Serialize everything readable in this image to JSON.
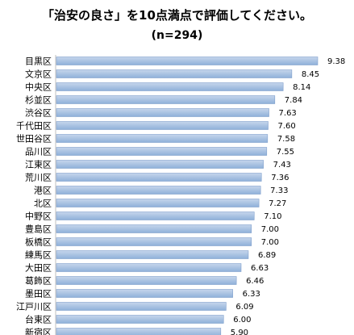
{
  "chart_data": {
    "type": "bar",
    "orientation": "horizontal",
    "title": "「治安の良さ」を10点満点で評価してください。",
    "subtitle": "(n=294)",
    "categories": [
      "目黒区",
      "文京区",
      "中央区",
      "杉並区",
      "渋谷区",
      "千代田区",
      "世田谷区",
      "品川区",
      "江東区",
      "荒川区",
      "港区",
      "北区",
      "中野区",
      "豊島区",
      "板橋区",
      "練馬区",
      "大田区",
      "葛飾区",
      "墨田区",
      "江戸川区",
      "台東区",
      "新宿区"
    ],
    "values": [
      9.38,
      8.45,
      8.14,
      7.84,
      7.63,
      7.6,
      7.58,
      7.55,
      7.43,
      7.36,
      7.33,
      7.27,
      7.1,
      7.0,
      7.0,
      6.89,
      6.63,
      6.46,
      6.33,
      6.09,
      6.0,
      5.9
    ],
    "value_labels": [
      "9.38",
      "8.45",
      "8.14",
      "7.84",
      "7.63",
      "7.60",
      "7.58",
      "7.55",
      "7.43",
      "7.36",
      "7.33",
      "7.27",
      "7.10",
      "7.00",
      "7.00",
      "6.89",
      "6.63",
      "6.46",
      "6.33",
      "6.09",
      "6.00",
      "5.90"
    ],
    "xlim": [
      0,
      10
    ],
    "grid": false,
    "legend": "none",
    "colors": {
      "bar_fill_light": "#c6d6ec",
      "bar_fill_dark": "#8fb0d9",
      "bar_stroke": "#7f9fcc"
    }
  }
}
